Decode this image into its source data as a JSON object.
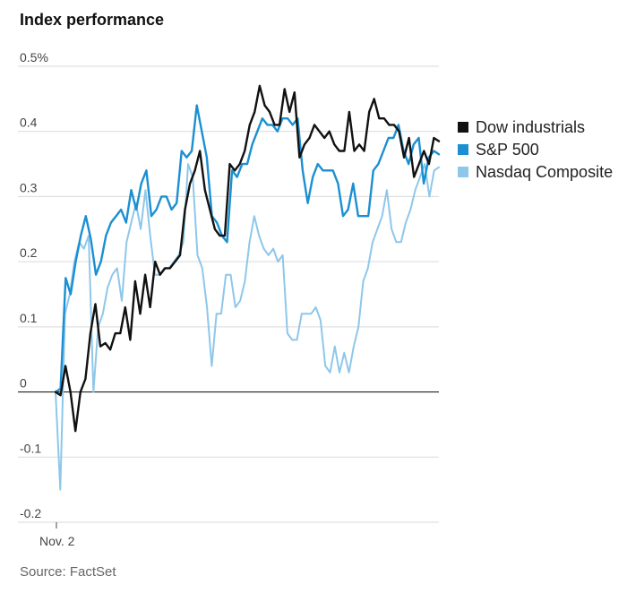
{
  "chart_data": {
    "type": "line",
    "title": "Index performance",
    "source": "Source: FactSet",
    "x_start_label": "Nov. 2",
    "ylim": [
      -0.2,
      0.5
    ],
    "y_ticks": [
      {
        "value": 0.5,
        "label": "0.5%"
      },
      {
        "value": 0.4,
        "label": "0.4"
      },
      {
        "value": 0.3,
        "label": "0.3"
      },
      {
        "value": 0.2,
        "label": "0.2"
      },
      {
        "value": 0.1,
        "label": "0.1"
      },
      {
        "value": 0,
        "label": "0"
      },
      {
        "value": -0.1,
        "label": "-0.1"
      },
      {
        "value": -0.2,
        "label": "-0.2"
      }
    ],
    "series": [
      {
        "name": "Dow industrials",
        "color": "#111111",
        "values": [
          0,
          -0.005,
          0.04,
          0.0,
          -0.06,
          0.0,
          0.02,
          0.09,
          0.135,
          0.07,
          0.075,
          0.065,
          0.09,
          0.09,
          0.13,
          0.08,
          0.17,
          0.12,
          0.18,
          0.13,
          0.2,
          0.18,
          0.19,
          0.19,
          0.2,
          0.21,
          0.28,
          0.32,
          0.34,
          0.37,
          0.31,
          0.28,
          0.25,
          0.24,
          0.24,
          0.35,
          0.34,
          0.35,
          0.37,
          0.41,
          0.43,
          0.47,
          0.44,
          0.43,
          0.41,
          0.41,
          0.465,
          0.43,
          0.46,
          0.36,
          0.38,
          0.39,
          0.41,
          0.4,
          0.39,
          0.4,
          0.38,
          0.37,
          0.37,
          0.43,
          0.37,
          0.38,
          0.37,
          0.43,
          0.45,
          0.42,
          0.42,
          0.41,
          0.41,
          0.4,
          0.36,
          0.39,
          0.33,
          0.35,
          0.37,
          0.35,
          0.39,
          0.385
        ]
      },
      {
        "name": "S&P 500",
        "color": "#1b8fd2",
        "values": [
          0,
          0.005,
          0.175,
          0.15,
          0.2,
          0.24,
          0.27,
          0.235,
          0.18,
          0.2,
          0.24,
          0.26,
          0.27,
          0.28,
          0.26,
          0.31,
          0.28,
          0.32,
          0.34,
          0.27,
          0.28,
          0.3,
          0.3,
          0.28,
          0.29,
          0.37,
          0.36,
          0.37,
          0.44,
          0.4,
          0.36,
          0.27,
          0.26,
          0.24,
          0.23,
          0.34,
          0.33,
          0.35,
          0.35,
          0.38,
          0.4,
          0.42,
          0.41,
          0.41,
          0.4,
          0.42,
          0.42,
          0.41,
          0.42,
          0.34,
          0.29,
          0.33,
          0.35,
          0.34,
          0.34,
          0.34,
          0.32,
          0.27,
          0.28,
          0.32,
          0.27,
          0.27,
          0.27,
          0.34,
          0.35,
          0.37,
          0.39,
          0.39,
          0.41,
          0.37,
          0.35,
          0.38,
          0.39,
          0.32,
          0.36,
          0.37,
          0.365
        ]
      },
      {
        "name": "Nasdaq Composite",
        "color": "#8ec7ea",
        "values": [
          0,
          -0.15,
          0.12,
          0.15,
          0.2,
          0.23,
          0.22,
          0.24,
          0.0,
          0.1,
          0.12,
          0.16,
          0.18,
          0.19,
          0.14,
          0.23,
          0.26,
          0.29,
          0.25,
          0.31,
          0.24,
          0.18,
          0.18,
          0.19,
          0.19,
          0.2,
          0.21,
          0.23,
          0.35,
          0.33,
          0.21,
          0.19,
          0.13,
          0.04,
          0.12,
          0.12,
          0.18,
          0.18,
          0.13,
          0.14,
          0.17,
          0.23,
          0.27,
          0.24,
          0.22,
          0.21,
          0.22,
          0.2,
          0.21,
          0.09,
          0.08,
          0.08,
          0.12,
          0.12,
          0.12,
          0.13,
          0.11,
          0.04,
          0.03,
          0.07,
          0.03,
          0.06,
          0.03,
          0.07,
          0.1,
          0.17,
          0.19,
          0.23,
          0.25,
          0.27,
          0.31,
          0.25,
          0.23,
          0.23,
          0.26,
          0.28,
          0.31,
          0.33,
          0.35,
          0.3,
          0.34,
          0.345
        ]
      }
    ]
  }
}
